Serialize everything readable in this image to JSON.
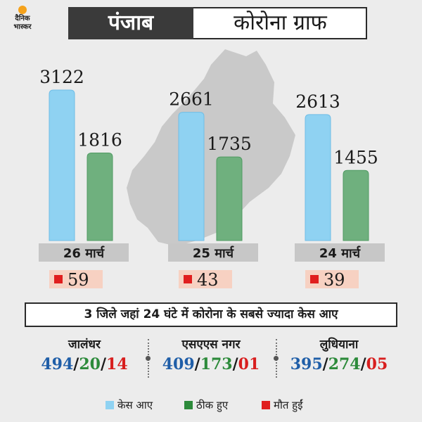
{
  "header": {
    "logo_line1": "दैनिक",
    "logo_line2": "भास्कर",
    "state": "पंजाब",
    "title": "कोरोना ग्राफ"
  },
  "colors": {
    "cases": "#8fd2f2",
    "recovered": "#6fb07e",
    "deaths": "#e01e1e",
    "header_dark": "#3a3a3a"
  },
  "chart_data": {
    "type": "bar",
    "categories": [
      "26 मार्च",
      "25 मार्च",
      "24 मार्च"
    ],
    "series": [
      {
        "name": "केस आए",
        "values": [
          3122,
          2661,
          2613
        ]
      },
      {
        "name": "ठीक हुए",
        "values": [
          1816,
          1735,
          1455
        ]
      }
    ],
    "deaths": [
      "59",
      "43",
      "39"
    ],
    "ylim": [
      0,
      3122
    ],
    "legend_position": "bottom"
  },
  "districts": {
    "title": "3 जिले जहां 24 घंटे में कोरोना के सबसे ज्यादा केस आए",
    "items": [
      {
        "name": "जालंधर",
        "cases": "494",
        "recovered": "20",
        "deaths": "14"
      },
      {
        "name": "एसएएस नगर",
        "cases": "409",
        "recovered": "173",
        "deaths": "01"
      },
      {
        "name": "लुधियाना",
        "cases": "395",
        "recovered": "274",
        "deaths": "05"
      }
    ]
  },
  "legend": [
    {
      "label": "केस आए",
      "color": "#8fd2f2"
    },
    {
      "label": "ठीक हुए",
      "color": "#2c8a3a"
    },
    {
      "label": "मौत हुईं",
      "color": "#e01e1e"
    }
  ]
}
